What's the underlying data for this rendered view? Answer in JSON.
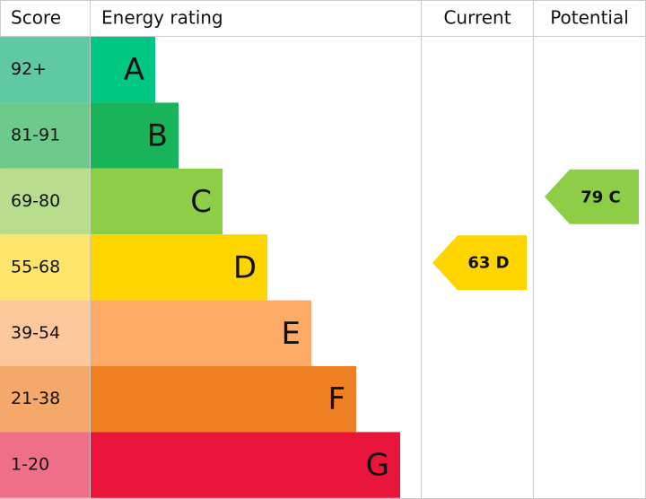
{
  "header": {
    "score": "Score",
    "rating": "Energy rating",
    "current": "Current",
    "potential": "Potential"
  },
  "bands": [
    {
      "score": "92+",
      "letter": "A"
    },
    {
      "score": "81-91",
      "letter": "B"
    },
    {
      "score": "69-80",
      "letter": "C"
    },
    {
      "score": "55-68",
      "letter": "D"
    },
    {
      "score": "39-54",
      "letter": "E"
    },
    {
      "score": "21-38",
      "letter": "F"
    },
    {
      "score": "1-20",
      "letter": "G"
    }
  ],
  "current": {
    "label": "63 D"
  },
  "potential": {
    "label": "79 C"
  }
}
